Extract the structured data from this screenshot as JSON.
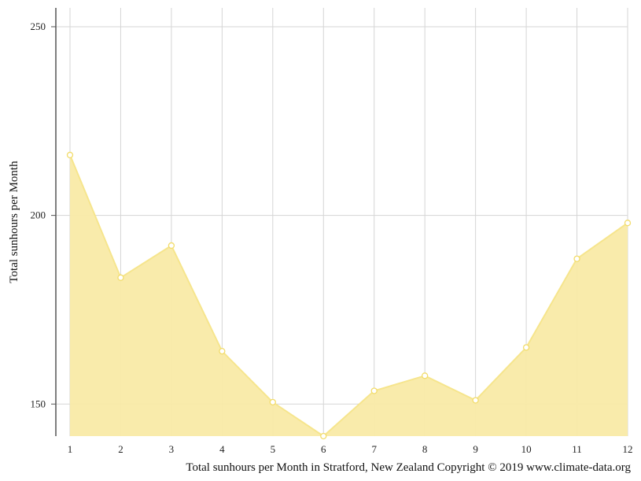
{
  "chart_data": {
    "type": "area",
    "title": "",
    "xlabel": "",
    "ylabel": "Total sunhours per Month",
    "caption": "Total sunhours per Month in Stratford, New Zealand Copyright © 2019 www.climate-data.org",
    "x": [
      1,
      2,
      3,
      4,
      5,
      6,
      7,
      8,
      9,
      10,
      11,
      12
    ],
    "x_ticks": [
      "1",
      "2",
      "3",
      "4",
      "5",
      "6",
      "7",
      "8",
      "9",
      "10",
      "11",
      "12"
    ],
    "y_ticks": [
      150,
      200,
      250
    ],
    "ylim": [
      141.5,
      255
    ],
    "series": [
      {
        "values": [
          216,
          183.5,
          192,
          164,
          150.5,
          141.5,
          153.5,
          157.5,
          151,
          165,
          188.5,
          198
        ]
      }
    ],
    "grid": true,
    "legend": "none",
    "colors": {
      "fill": "#f9eaa6",
      "line": "#f6e58d",
      "marker_fill": "#ffffff",
      "marker_stroke": "#f2dc6b",
      "grid": "#d5d5d5",
      "axis": "#555555"
    }
  }
}
